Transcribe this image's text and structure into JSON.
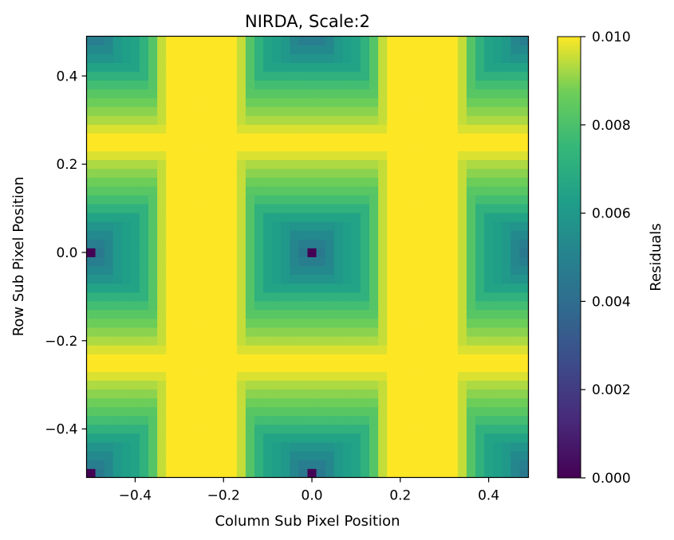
{
  "chart_data": {
    "type": "heatmap",
    "title": "NIRDA, Scale:2",
    "xlabel": "Column Sub Pixel Position",
    "ylabel": "Row Sub Pixel Position",
    "colorbar_label": "Residuals",
    "colormap": "viridis",
    "xlim": [
      -0.51,
      0.49
    ],
    "ylim": [
      -0.51,
      0.49
    ],
    "grid_shape": [
      50,
      50
    ],
    "cell_size": 0.02,
    "x_ticks": [
      -0.4,
      -0.2,
      0.0,
      0.2,
      0.4
    ],
    "x_tick_labels": [
      "−0.4",
      "−0.2",
      "0.0",
      "0.2",
      "0.4"
    ],
    "y_ticks": [
      -0.4,
      -0.2,
      0.0,
      0.2,
      0.4
    ],
    "y_tick_labels": [
      "−0.4",
      "−0.2",
      "0.0",
      "0.2",
      "0.4"
    ],
    "color_range": [
      0.0,
      0.01
    ],
    "colorbar_ticks": [
      0.0,
      0.002,
      0.004,
      0.006,
      0.008,
      0.01
    ],
    "colorbar_tick_labels": [
      "0.000",
      "0.002",
      "0.004",
      "0.006",
      "0.008",
      "0.010"
    ],
    "pattern": {
      "row_value_profile_y": [
        0.0,
        0.02,
        0.04,
        0.06,
        0.08,
        0.1,
        0.12,
        0.14,
        0.16,
        0.18,
        0.2,
        0.22,
        0.24,
        0.26,
        0.28,
        0.3,
        0.32,
        0.34,
        0.36,
        0.38,
        0.4,
        0.42,
        0.44,
        0.46,
        0.48,
        0.5
      ],
      "row_value_profile": [
        0.0045,
        0.0048,
        0.0053,
        0.0058,
        0.0065,
        0.0072,
        0.0078,
        0.0083,
        0.0087,
        0.009,
        0.0093,
        0.0097,
        0.01,
        0.01,
        0.01,
        0.0095,
        0.009,
        0.0083,
        0.0076,
        0.007,
        0.0064,
        0.006,
        0.0056,
        0.0053,
        0.005,
        0.0048
      ],
      "column_value_profile_x": [
        0.0,
        0.02,
        0.04,
        0.06,
        0.08,
        0.1,
        0.12,
        0.14,
        0.16,
        0.18,
        0.2,
        0.22,
        0.24,
        0.26,
        0.28,
        0.3,
        0.32,
        0.34,
        0.36,
        0.38,
        0.4,
        0.42,
        0.44,
        0.46,
        0.48,
        0.5
      ],
      "column_value_profile": [
        0.0035,
        0.0042,
        0.0052,
        0.006,
        0.0063,
        0.0065,
        0.0072,
        0.0082,
        0.0095,
        0.01,
        0.01,
        0.01,
        0.01,
        0.01,
        0.01,
        0.01,
        0.01,
        0.0098,
        0.0088,
        0.0078,
        0.007,
        0.0065,
        0.0058,
        0.0048,
        0.004,
        0.0035
      ],
      "minimum_value": 0.0,
      "minimum_locations": [
        [
          0.0,
          0.0
        ],
        [
          -0.5,
          0.0
        ],
        [
          0.0,
          -0.5
        ],
        [
          -0.5,
          -0.5
        ]
      ]
    }
  }
}
